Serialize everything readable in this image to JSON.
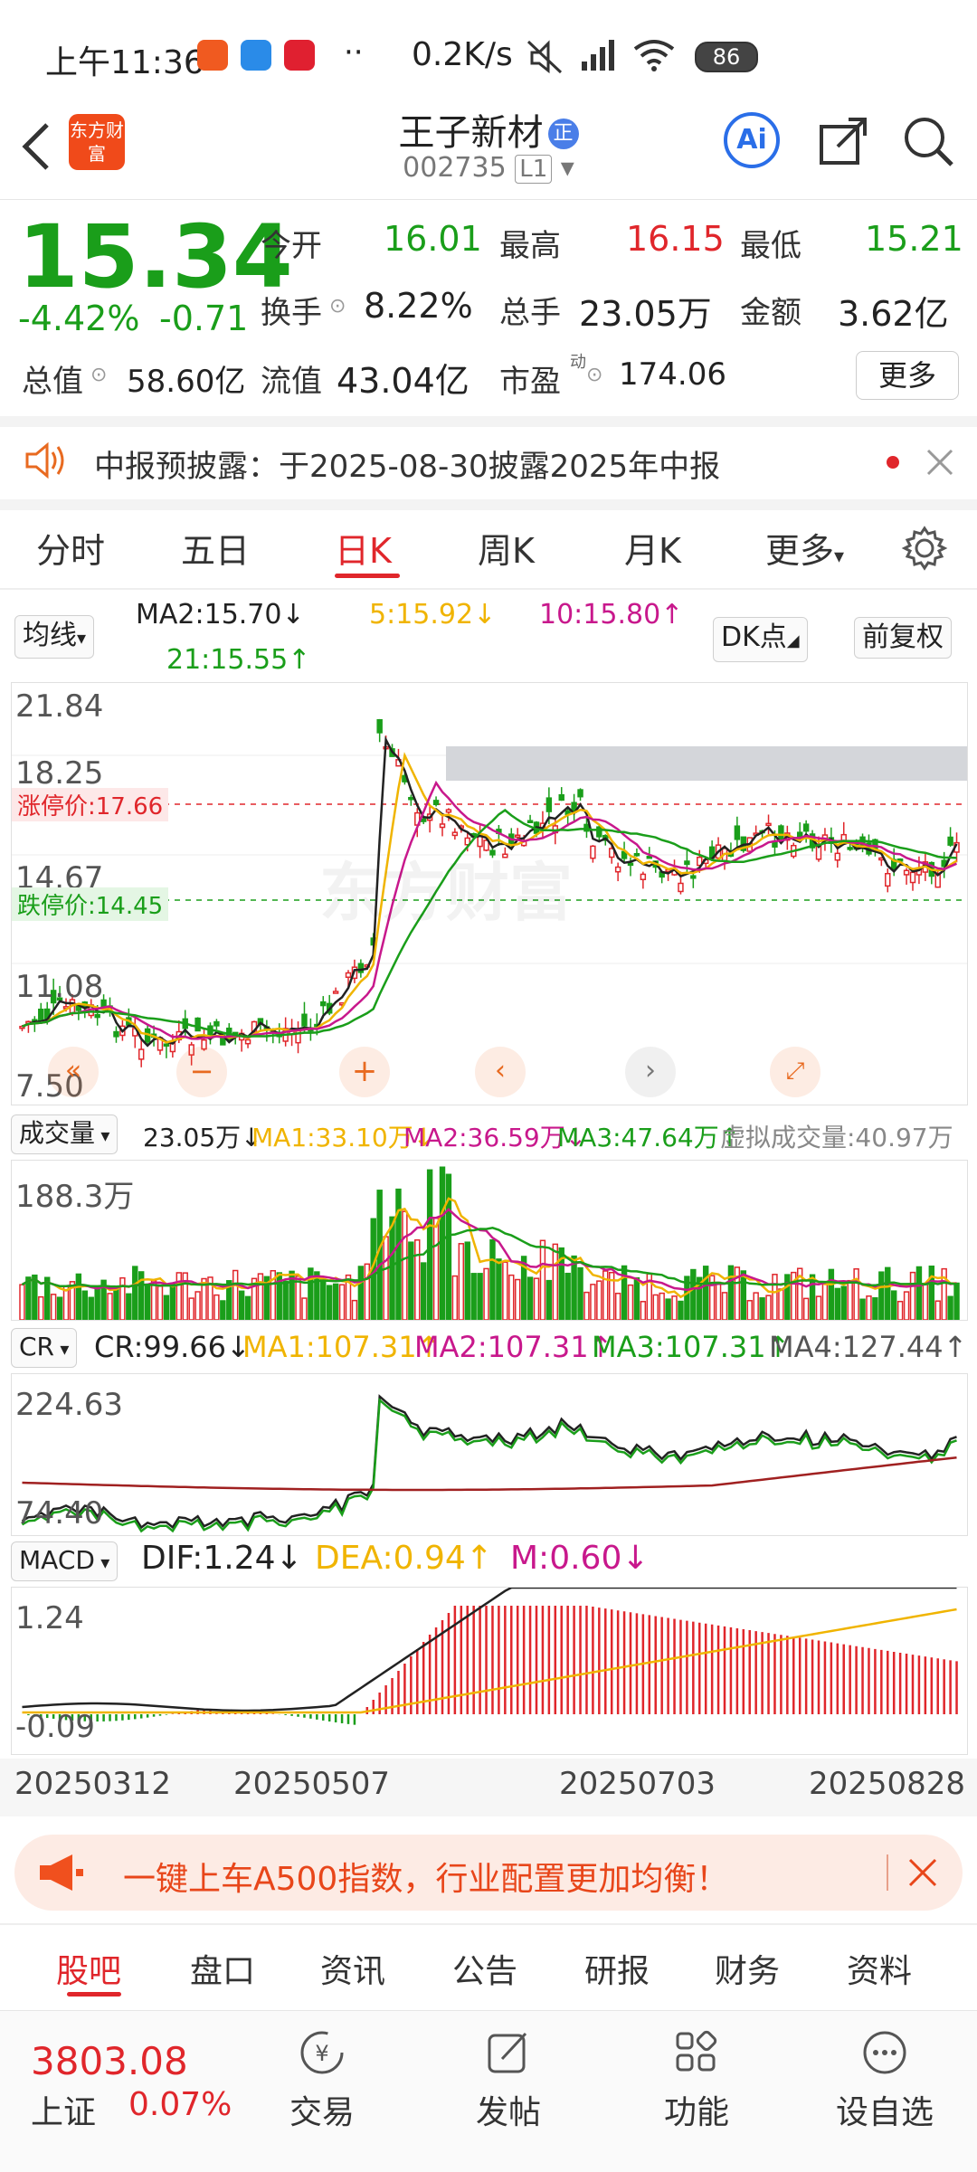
{
  "status_bar": {
    "time": "上午11:36",
    "net_speed": "0.2K/s",
    "battery": "86"
  },
  "header": {
    "logo_text": "东方财富",
    "stock_name": "王子新材",
    "badge": "正",
    "stock_code": "002735",
    "level": "L1"
  },
  "quote": {
    "price": "15.34",
    "change_pct": "-4.42%",
    "change": "-0.71",
    "open_label": "今开",
    "open": "16.01",
    "high_label": "最高",
    "high": "16.15",
    "low_label": "最低",
    "low": "15.21",
    "turnover_label": "换手",
    "turnover": "8.22%",
    "volume_label": "总手",
    "volume": "23.05万",
    "amount_label": "金额",
    "amount": "3.62亿",
    "mktcap_label": "总值",
    "mktcap": "58.60亿",
    "float_label": "流值",
    "float": "43.04亿",
    "pe_label": "市盈",
    "pe_sup": "动",
    "pe": "174.06",
    "more_button": "更多"
  },
  "notice": {
    "text": "中报预披露：于2025-08-30披露2025年中报"
  },
  "tabs": [
    "分时",
    "五日",
    "日K",
    "周K",
    "月K",
    "更多"
  ],
  "active_tab": "日K",
  "kline": {
    "ma_select": "均线",
    "ma2": "MA2:15.70↓",
    "ma5": "5:15.92↓",
    "ma10": "10:15.80↑",
    "ma21": "21:15.55↑",
    "dk_button": "DK点",
    "adjust_button": "前复权",
    "y_labels": [
      "21.84",
      "18.25",
      "14.67",
      "11.08",
      "7.50"
    ],
    "limit_up": "涨停价:17.66",
    "limit_down": "跌停价:14.45",
    "watermark": "东方财富"
  },
  "volume_panel": {
    "select": "成交量",
    "vol": "23.05万↓",
    "ma1": "MA1:33.10万↓",
    "ma2": "MA2:36.59万↓",
    "ma3": "MA3:47.64万↑",
    "virtual": "虚拟成交量:40.97万",
    "y_label": "188.3万"
  },
  "cr_panel": {
    "select": "CR",
    "cr": "CR:99.66↓",
    "ma1": "MA1:107.31↑",
    "ma2": "MA2:107.31↑",
    "ma3": "MA3:107.31↑",
    "ma4": "MA4:127.44↑",
    "y_top": "224.63",
    "y_bottom": "74.40"
  },
  "macd_panel": {
    "select": "MACD",
    "dif": "DIF:1.24↓",
    "dea": "DEA:0.94↑",
    "m": "M:0.60↓",
    "y_top": "1.24",
    "y_bottom": "-0.09"
  },
  "x_dates": [
    "20250312",
    "20250507",
    "20250703",
    "20250828"
  ],
  "ad_banner": {
    "text": "一键上车A500指数，行业配置更加均衡！"
  },
  "bottom_tabs": [
    "股吧",
    "盘口",
    "资讯",
    "公告",
    "研报",
    "财务",
    "资料"
  ],
  "active_bottom_tab": "股吧",
  "index": {
    "value": "3803.08",
    "name": "上证",
    "change": "0.07%"
  },
  "nav": [
    "交易",
    "发帖",
    "功能",
    "设自选"
  ],
  "colors": {
    "up": "#e0262b",
    "down": "#1a9e1a",
    "ma5": "#f0b400",
    "ma10": "#c8188c",
    "ma21": "#1a9e1a",
    "accent": "#f0501e"
  }
}
